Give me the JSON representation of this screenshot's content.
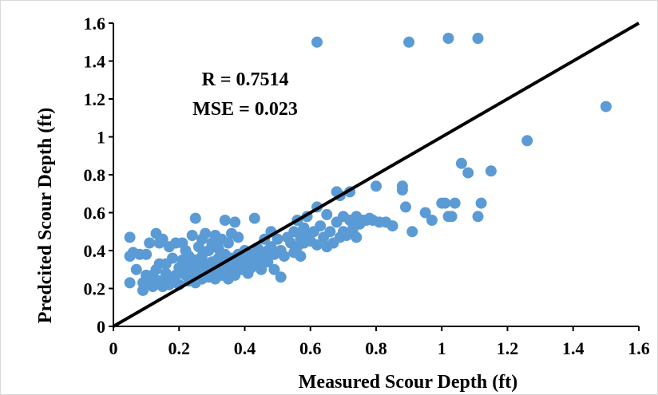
{
  "chart_data": {
    "type": "scatter",
    "title": "",
    "xlabel": "Measured Scour Depth (ft)",
    "ylabel": "Predcited Scour Depth (ft)",
    "xlim": [
      0,
      1.6
    ],
    "ylim": [
      0,
      1.6
    ],
    "x_ticks": [
      "0",
      "0.2",
      "0.4",
      "0.6",
      "0.8",
      "1",
      "1.2",
      "1.4",
      "1.6"
    ],
    "y_ticks": [
      "0",
      "0.2",
      "0.4",
      "0.6",
      "0.8",
      "1",
      "1.2",
      "1.4",
      "1.6"
    ],
    "grid": false,
    "legend": "none",
    "annotations": [
      "R = 0.7514",
      "MSE = 0.023"
    ],
    "reference_line": {
      "from": [
        0,
        0
      ],
      "to": [
        1.6,
        1.6
      ],
      "color": "#000000"
    },
    "colors": {
      "points": "#5b9bd5",
      "line": "#000000"
    },
    "series": [
      {
        "points": [
          [
            0.05,
            0.47
          ],
          [
            0.05,
            0.23
          ],
          [
            0.05,
            0.37
          ],
          [
            0.06,
            0.39
          ],
          [
            0.07,
            0.3
          ],
          [
            0.08,
            0.38
          ],
          [
            0.09,
            0.19
          ],
          [
            0.09,
            0.23
          ],
          [
            0.1,
            0.38
          ],
          [
            0.1,
            0.27
          ],
          [
            0.11,
            0.44
          ],
          [
            0.11,
            0.24
          ],
          [
            0.12,
            0.27
          ],
          [
            0.12,
            0.21
          ],
          [
            0.13,
            0.49
          ],
          [
            0.13,
            0.3
          ],
          [
            0.14,
            0.44
          ],
          [
            0.14,
            0.33
          ],
          [
            0.14,
            0.24
          ],
          [
            0.15,
            0.46
          ],
          [
            0.15,
            0.21
          ],
          [
            0.16,
            0.28
          ],
          [
            0.16,
            0.33
          ],
          [
            0.16,
            0.24
          ],
          [
            0.17,
            0.42
          ],
          [
            0.17,
            0.22
          ],
          [
            0.18,
            0.36
          ],
          [
            0.18,
            0.25
          ],
          [
            0.19,
            0.27
          ],
          [
            0.19,
            0.44
          ],
          [
            0.2,
            0.31
          ],
          [
            0.2,
            0.22
          ],
          [
            0.21,
            0.35
          ],
          [
            0.21,
            0.28
          ],
          [
            0.21,
            0.44
          ],
          [
            0.22,
            0.27
          ],
          [
            0.22,
            0.33
          ],
          [
            0.22,
            0.4
          ],
          [
            0.23,
            0.24
          ],
          [
            0.23,
            0.3
          ],
          [
            0.23,
            0.37
          ],
          [
            0.24,
            0.26
          ],
          [
            0.24,
            0.32
          ],
          [
            0.24,
            0.48
          ],
          [
            0.25,
            0.57
          ],
          [
            0.25,
            0.23
          ],
          [
            0.25,
            0.29
          ],
          [
            0.25,
            0.35
          ],
          [
            0.26,
            0.42
          ],
          [
            0.26,
            0.27
          ],
          [
            0.26,
            0.31
          ],
          [
            0.27,
            0.25
          ],
          [
            0.27,
            0.37
          ],
          [
            0.27,
            0.46
          ],
          [
            0.28,
            0.28
          ],
          [
            0.28,
            0.33
          ],
          [
            0.28,
            0.49
          ],
          [
            0.29,
            0.26
          ],
          [
            0.29,
            0.3
          ],
          [
            0.29,
            0.4
          ],
          [
            0.3,
            0.34
          ],
          [
            0.3,
            0.28
          ],
          [
            0.3,
            0.44
          ],
          [
            0.31,
            0.48
          ],
          [
            0.31,
            0.25
          ],
          [
            0.31,
            0.32
          ],
          [
            0.32,
            0.29
          ],
          [
            0.32,
            0.36
          ],
          [
            0.32,
            0.41
          ],
          [
            0.33,
            0.27
          ],
          [
            0.33,
            0.33
          ],
          [
            0.33,
            0.46
          ],
          [
            0.34,
            0.56
          ],
          [
            0.34,
            0.3
          ],
          [
            0.34,
            0.38
          ],
          [
            0.35,
            0.25
          ],
          [
            0.35,
            0.33
          ],
          [
            0.35,
            0.44
          ],
          [
            0.36,
            0.29
          ],
          [
            0.36,
            0.36
          ],
          [
            0.36,
            0.49
          ],
          [
            0.37,
            0.55
          ],
          [
            0.37,
            0.27
          ],
          [
            0.37,
            0.34
          ],
          [
            0.38,
            0.31
          ],
          [
            0.38,
            0.38
          ],
          [
            0.38,
            0.47
          ],
          [
            0.39,
            0.3
          ],
          [
            0.39,
            0.36
          ],
          [
            0.4,
            0.33
          ],
          [
            0.4,
            0.4
          ],
          [
            0.41,
            0.28
          ],
          [
            0.41,
            0.36
          ],
          [
            0.42,
            0.38
          ],
          [
            0.42,
            0.31
          ],
          [
            0.43,
            0.57
          ],
          [
            0.43,
            0.34
          ],
          [
            0.44,
            0.37
          ],
          [
            0.44,
            0.41
          ],
          [
            0.45,
            0.35
          ],
          [
            0.45,
            0.3
          ],
          [
            0.46,
            0.38
          ],
          [
            0.46,
            0.46
          ],
          [
            0.47,
            0.4
          ],
          [
            0.47,
            0.34
          ],
          [
            0.48,
            0.42
          ],
          [
            0.48,
            0.5
          ],
          [
            0.49,
            0.3
          ],
          [
            0.49,
            0.38
          ],
          [
            0.5,
            0.46
          ],
          [
            0.51,
            0.4
          ],
          [
            0.51,
            0.26
          ],
          [
            0.52,
            0.37
          ],
          [
            0.53,
            0.47
          ],
          [
            0.54,
            0.44
          ],
          [
            0.55,
            0.5
          ],
          [
            0.55,
            0.39
          ],
          [
            0.56,
            0.42
          ],
          [
            0.56,
            0.56
          ],
          [
            0.57,
            0.47
          ],
          [
            0.57,
            0.37
          ],
          [
            0.58,
            0.52
          ],
          [
            0.58,
            0.44
          ],
          [
            0.59,
            0.58
          ],
          [
            0.59,
            0.48
          ],
          [
            0.6,
            0.45
          ],
          [
            0.61,
            0.5
          ],
          [
            0.62,
            1.5
          ],
          [
            0.62,
            0.63
          ],
          [
            0.62,
            0.43
          ],
          [
            0.63,
            0.53
          ],
          [
            0.64,
            0.47
          ],
          [
            0.65,
            0.59
          ],
          [
            0.65,
            0.42
          ],
          [
            0.66,
            0.5
          ],
          [
            0.67,
            0.44
          ],
          [
            0.68,
            0.71
          ],
          [
            0.68,
            0.55
          ],
          [
            0.69,
            0.47
          ],
          [
            0.69,
            0.69
          ],
          [
            0.7,
            0.58
          ],
          [
            0.7,
            0.5
          ],
          [
            0.71,
            0.48
          ],
          [
            0.72,
            0.71
          ],
          [
            0.72,
            0.56
          ],
          [
            0.73,
            0.49
          ],
          [
            0.73,
            0.52
          ],
          [
            0.74,
            0.58
          ],
          [
            0.74,
            0.47
          ],
          [
            0.75,
            0.54
          ],
          [
            0.76,
            0.56
          ],
          [
            0.77,
            0.56
          ],
          [
            0.78,
            0.57
          ],
          [
            0.79,
            0.56
          ],
          [
            0.8,
            0.74
          ],
          [
            0.81,
            0.55
          ],
          [
            0.83,
            0.55
          ],
          [
            0.85,
            0.53
          ],
          [
            0.88,
            0.74
          ],
          [
            0.88,
            0.72
          ],
          [
            0.89,
            0.63
          ],
          [
            0.9,
            1.5
          ],
          [
            0.91,
            0.5
          ],
          [
            0.95,
            0.6
          ],
          [
            0.97,
            0.56
          ],
          [
            1.0,
            0.65
          ],
          [
            1.01,
            0.65
          ],
          [
            1.02,
            1.52
          ],
          [
            1.02,
            0.58
          ],
          [
            1.03,
            0.58
          ],
          [
            1.04,
            0.65
          ],
          [
            1.06,
            0.86
          ],
          [
            1.08,
            0.81
          ],
          [
            1.11,
            1.52
          ],
          [
            1.11,
            0.58
          ],
          [
            1.12,
            0.65
          ],
          [
            1.15,
            0.82
          ],
          [
            1.26,
            0.98
          ],
          [
            1.5,
            1.16
          ]
        ]
      }
    ]
  }
}
